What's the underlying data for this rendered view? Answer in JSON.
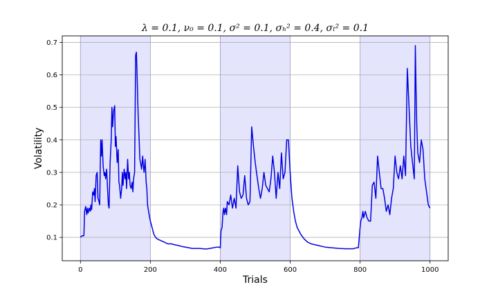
{
  "chart_data": {
    "type": "line",
    "title": "λ = 0.1, ν₀ = 0.1, σ² = 0.1, σₕ² = 0.4, σₗ² = 0.1",
    "xlabel": "Trials",
    "ylabel": "Volatility",
    "xlim": [
      -52,
      1052
    ],
    "ylim": [
      0.028,
      0.72
    ],
    "xticks": [
      0,
      200,
      400,
      600,
      800,
      1000
    ],
    "yticks": [
      0.1,
      0.2,
      0.3,
      0.4,
      0.5,
      0.6,
      0.7
    ],
    "ytick_labels": [
      "0.1",
      "0.2",
      "0.3",
      "0.4",
      "0.5",
      "0.6",
      "0.7"
    ],
    "grid": "y-axis on",
    "line_color": "#0000e0",
    "shaded_color": "#e4e4fc",
    "shaded_regions": [
      [
        0,
        200
      ],
      [
        400,
        600
      ],
      [
        800,
        1000
      ]
    ],
    "series": [
      {
        "x": [
          0,
          5,
          10,
          12,
          15,
          18,
          20,
          22,
          25,
          28,
          30,
          32,
          35,
          38,
          40,
          42,
          45,
          48,
          50,
          52,
          55,
          58,
          60,
          62,
          65,
          68,
          70,
          72,
          75,
          78,
          80,
          82,
          85,
          88,
          90,
          92,
          95,
          98,
          100,
          102,
          105,
          108,
          110,
          112,
          115,
          118,
          120,
          122,
          125,
          128,
          130,
          132,
          135,
          138,
          140,
          142,
          145,
          148,
          150,
          152,
          155,
          158,
          160,
          162,
          165,
          168,
          170,
          172,
          175,
          178,
          180,
          182,
          185,
          188,
          190,
          192,
          195,
          198,
          200,
          205,
          210,
          215,
          220,
          230,
          240,
          250,
          260,
          270,
          280,
          290,
          300,
          320,
          340,
          360,
          380,
          390,
          395,
          400,
          402,
          405,
          408,
          410,
          412,
          415,
          418,
          420,
          425,
          430,
          435,
          440,
          445,
          450,
          455,
          460,
          465,
          470,
          475,
          480,
          485,
          490,
          495,
          500,
          505,
          510,
          515,
          520,
          525,
          530,
          535,
          540,
          545,
          550,
          555,
          560,
          565,
          570,
          575,
          580,
          585,
          590,
          595,
          600,
          605,
          610,
          615,
          620,
          630,
          640,
          650,
          660,
          680,
          700,
          720,
          740,
          760,
          780,
          790,
          795,
          800,
          802,
          805,
          808,
          810,
          815,
          820,
          825,
          830,
          835,
          840,
          845,
          850,
          855,
          860,
          865,
          870,
          875,
          880,
          885,
          890,
          895,
          900,
          905,
          910,
          915,
          920,
          925,
          930,
          935,
          940,
          945,
          950,
          955,
          958,
          960,
          962,
          965,
          970,
          975,
          980,
          985,
          990,
          995,
          1000
        ],
        "y": [
          0.1,
          0.105,
          0.105,
          0.18,
          0.195,
          0.17,
          0.19,
          0.175,
          0.19,
          0.18,
          0.2,
          0.185,
          0.24,
          0.23,
          0.25,
          0.21,
          0.29,
          0.3,
          0.22,
          0.215,
          0.2,
          0.4,
          0.35,
          0.4,
          0.32,
          0.29,
          0.3,
          0.28,
          0.31,
          0.24,
          0.2,
          0.19,
          0.33,
          0.4,
          0.5,
          0.44,
          0.49,
          0.505,
          0.38,
          0.41,
          0.33,
          0.37,
          0.27,
          0.26,
          0.22,
          0.25,
          0.3,
          0.26,
          0.31,
          0.28,
          0.3,
          0.25,
          0.34,
          0.28,
          0.3,
          0.26,
          0.25,
          0.27,
          0.24,
          0.28,
          0.3,
          0.66,
          0.67,
          0.6,
          0.48,
          0.4,
          0.34,
          0.33,
          0.31,
          0.35,
          0.32,
          0.3,
          0.34,
          0.27,
          0.25,
          0.2,
          0.18,
          0.16,
          0.15,
          0.13,
          0.11,
          0.1,
          0.095,
          0.09,
          0.085,
          0.08,
          0.08,
          0.077,
          0.075,
          0.072,
          0.07,
          0.066,
          0.066,
          0.064,
          0.068,
          0.07,
          0.07,
          0.068,
          0.12,
          0.13,
          0.18,
          0.19,
          0.17,
          0.19,
          0.17,
          0.21,
          0.2,
          0.23,
          0.19,
          0.22,
          0.19,
          0.32,
          0.24,
          0.22,
          0.23,
          0.29,
          0.22,
          0.2,
          0.21,
          0.44,
          0.38,
          0.33,
          0.29,
          0.25,
          0.22,
          0.25,
          0.3,
          0.26,
          0.25,
          0.24,
          0.28,
          0.35,
          0.3,
          0.22,
          0.3,
          0.25,
          0.36,
          0.28,
          0.3,
          0.4,
          0.4,
          0.3,
          0.22,
          0.18,
          0.15,
          0.13,
          0.11,
          0.095,
          0.085,
          0.08,
          0.075,
          0.07,
          0.068,
          0.066,
          0.065,
          0.065,
          0.068,
          0.068,
          0.13,
          0.15,
          0.16,
          0.18,
          0.16,
          0.18,
          0.16,
          0.15,
          0.15,
          0.26,
          0.27,
          0.22,
          0.35,
          0.3,
          0.25,
          0.25,
          0.22,
          0.18,
          0.2,
          0.17,
          0.22,
          0.25,
          0.35,
          0.3,
          0.28,
          0.32,
          0.28,
          0.35,
          0.29,
          0.62,
          0.5,
          0.38,
          0.33,
          0.28,
          0.69,
          0.56,
          0.45,
          0.36,
          0.33,
          0.4,
          0.37,
          0.28,
          0.24,
          0.2,
          0.19
        ]
      }
    ]
  }
}
